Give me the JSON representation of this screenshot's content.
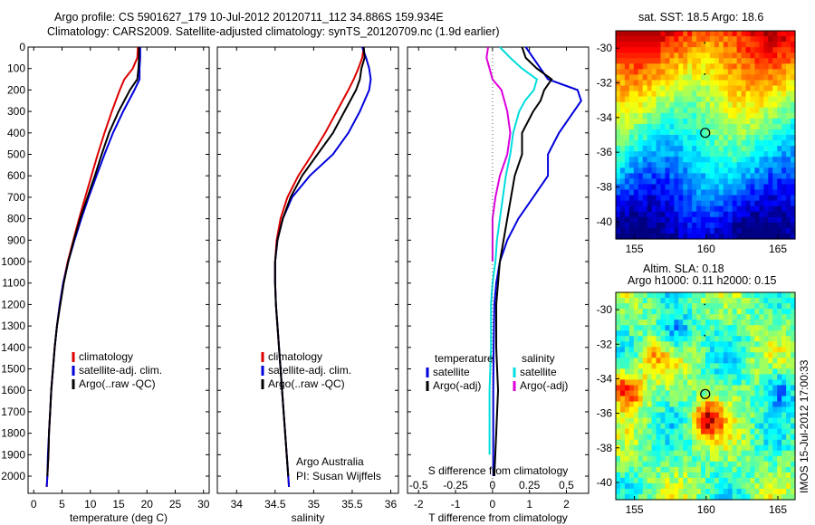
{
  "header": {
    "line1": "Argo profile: CS 5901627_179 10-Jul-2012 20120711_112 34.886S 159.934E",
    "line2": "Climatology: CARS2009. Satellite-adjusted climatology: synTS_20120709.nc (1.9d earlier)"
  },
  "depth_axis": {
    "ticks": [
      0,
      100,
      200,
      300,
      400,
      500,
      600,
      700,
      800,
      900,
      1000,
      1100,
      1200,
      1300,
      1400,
      1500,
      1600,
      1700,
      1800,
      1900,
      2000
    ],
    "range": [
      0,
      2080
    ]
  },
  "chart_data": [
    {
      "type": "line",
      "name": "temperature",
      "xlabel": "temperature (deg C)",
      "ylabel": "",
      "xlim": [
        -1,
        31
      ],
      "xticks": [
        0,
        5,
        10,
        15,
        20,
        25,
        30
      ],
      "legend": [
        "climatology",
        "satellite-adj. clim.",
        "Argo(..raw -QC)"
      ],
      "legend_placement": "bottom-center",
      "series": [
        {
          "name": "climatology",
          "color": "#dd0000",
          "depth": [
            0,
            50,
            100,
            150,
            200,
            300,
            400,
            500,
            600,
            700,
            800,
            900,
            1000,
            1100,
            1200,
            1300,
            1400,
            1500,
            1600,
            1700,
            1800,
            1900,
            2000,
            2050
          ],
          "values": [
            18.4,
            18.3,
            17.5,
            16.0,
            15.2,
            13.8,
            12.5,
            11.3,
            10.2,
            9.1,
            8.0,
            7.0,
            6.0,
            5.2,
            4.6,
            4.1,
            3.7,
            3.4,
            3.1,
            2.9,
            2.7,
            2.6,
            2.4,
            2.3
          ]
        },
        {
          "name": "satellite-adj. clim.",
          "color": "#0000dd",
          "depth": [
            0,
            50,
            100,
            150,
            200,
            300,
            400,
            500,
            600,
            700,
            800,
            900,
            1000,
            1100,
            1200,
            1300,
            1400,
            1500,
            1600,
            1700,
            1800,
            1900,
            2000,
            2050
          ],
          "values": [
            18.8,
            18.8,
            18.7,
            18.7,
            17.8,
            15.8,
            14.0,
            12.5,
            11.1,
            9.7,
            8.4,
            7.2,
            6.1,
            5.2,
            4.6,
            4.1,
            3.7,
            3.4,
            3.1,
            2.9,
            2.7,
            2.5,
            2.4,
            2.3
          ]
        },
        {
          "name": "Argo(..raw -QC)",
          "color": "#000000",
          "depth": [
            0,
            50,
            100,
            150,
            200,
            300,
            400,
            500,
            600,
            700,
            800,
            900,
            1000,
            1100,
            1200,
            1300,
            1400,
            1500,
            1600,
            1700,
            1800,
            1900,
            2000
          ],
          "values": [
            18.6,
            18.6,
            18.5,
            18.3,
            17.0,
            15.0,
            13.3,
            12.0,
            10.8,
            9.5,
            8.2,
            7.1,
            6.1,
            5.3,
            4.7,
            4.1,
            3.7,
            3.4,
            3.1,
            2.9,
            2.7,
            2.6,
            2.4
          ]
        }
      ]
    },
    {
      "type": "line",
      "name": "salinity",
      "xlabel": "salinity",
      "ylabel": "",
      "xlim": [
        33.75,
        36.1
      ],
      "xticks": [
        34,
        34.5,
        35,
        35.5,
        36
      ],
      "legend": [
        "climatology",
        "satellite-adj. clim.",
        "Argo(..raw -QC)"
      ],
      "legend_placement": "bottom-center",
      "annotation": [
        "Argo Australia",
        "PI: Susan Wijffels"
      ],
      "series": [
        {
          "name": "climatology",
          "color": "#dd0000",
          "depth": [
            0,
            50,
            100,
            150,
            200,
            300,
            400,
            500,
            600,
            700,
            800,
            900,
            1000,
            1100,
            1200,
            1300,
            1400,
            1500,
            1600,
            1700,
            1800,
            1900,
            2000,
            2050
          ],
          "values": [
            35.65,
            35.63,
            35.58,
            35.52,
            35.45,
            35.3,
            35.15,
            34.98,
            34.8,
            34.66,
            34.57,
            34.52,
            34.5,
            34.5,
            34.51,
            34.53,
            34.55,
            34.57,
            34.59,
            34.61,
            34.63,
            34.65,
            34.67,
            34.68
          ]
        },
        {
          "name": "satellite-adj. clim.",
          "color": "#0000dd",
          "depth": [
            0,
            50,
            100,
            150,
            200,
            300,
            400,
            500,
            600,
            700,
            800,
            900,
            1000,
            1100,
            1200,
            1300,
            1400,
            1500,
            1600,
            1700,
            1800,
            1900,
            2000,
            2050
          ],
          "values": [
            35.63,
            35.68,
            35.72,
            35.74,
            35.72,
            35.6,
            35.45,
            35.25,
            34.95,
            34.72,
            34.6,
            34.53,
            34.5,
            34.5,
            34.51,
            34.53,
            34.55,
            34.57,
            34.59,
            34.61,
            34.63,
            34.65,
            34.67,
            34.68
          ]
        },
        {
          "name": "Argo(..raw -QC)",
          "color": "#000000",
          "depth": [
            0,
            50,
            100,
            150,
            200,
            300,
            400,
            500,
            600,
            700,
            800,
            900,
            1000,
            1100,
            1200,
            1300,
            1400,
            1500,
            1600,
            1700,
            1800,
            1900,
            2000
          ],
          "values": [
            35.65,
            35.66,
            35.62,
            35.6,
            35.55,
            35.4,
            35.25,
            35.05,
            34.85,
            34.7,
            34.6,
            34.53,
            34.5,
            34.5,
            34.51,
            34.53,
            34.55,
            34.57,
            34.59,
            34.61,
            34.63,
            34.65,
            34.67
          ]
        }
      ]
    },
    {
      "type": "line",
      "name": "differences",
      "xlabel": "T difference from climatology",
      "xlabel_top": "S difference from climatology",
      "xlim": [
        -2.3,
        2.6
      ],
      "xticks": [
        -2,
        -1,
        0,
        1,
        2
      ],
      "s_ticks": [
        -0.5,
        -0.25,
        0,
        0.25,
        0.5
      ],
      "s_ticklabels": [
        "-0.5",
        "-0.25",
        "0",
        "0.25",
        "0.5"
      ],
      "legend_temperature": {
        "title": "temperature",
        "items": [
          "satellite",
          "Argo(-adj)"
        ]
      },
      "legend_salinity": {
        "title": "salinity",
        "items": [
          "satellite",
          "Argo(-adj)"
        ]
      },
      "series": [
        {
          "name": "T satellite",
          "color": "#0000dd",
          "depth": [
            0,
            50,
            100,
            150,
            200,
            250,
            300,
            400,
            500,
            600,
            700,
            800,
            900,
            1000,
            1100,
            1200,
            1400,
            1600,
            1800,
            2000
          ],
          "values": [
            0.9,
            1.1,
            1.3,
            1.5,
            2.3,
            2.4,
            2.2,
            1.8,
            1.5,
            1.5,
            1.1,
            0.7,
            0.4,
            0.2,
            0.1,
            0.05,
            0.03,
            0.02,
            0.02,
            0.02
          ]
        },
        {
          "name": "T Argo(-adj)",
          "color": "#000000",
          "depth": [
            0,
            50,
            100,
            150,
            200,
            250,
            300,
            400,
            500,
            600,
            700,
            800,
            900,
            1000,
            1100,
            1200,
            1400,
            1600,
            1800,
            2000
          ],
          "values": [
            0.8,
            0.9,
            1.2,
            1.6,
            1.4,
            1.3,
            1.1,
            0.8,
            0.8,
            0.6,
            0.5,
            0.4,
            0.3,
            0.2,
            0.15,
            0.1,
            0.1,
            0.15,
            0.1,
            0.05
          ]
        },
        {
          "name": "S satellite",
          "color": "#00dddd",
          "depth": [
            0,
            50,
            100,
            150,
            200,
            250,
            300,
            400,
            500,
            600,
            700,
            800,
            900,
            1000,
            1100,
            1200,
            1400,
            1600,
            1800,
            1900
          ],
          "values": [
            0.05,
            0.12,
            0.2,
            0.3,
            0.28,
            0.22,
            0.18,
            0.14,
            0.12,
            0.09,
            0.07,
            0.05,
            0.03,
            0.02,
            0.0,
            -0.01,
            -0.01,
            -0.02,
            -0.02,
            -0.02
          ]
        },
        {
          "name": "S Argo(-adj)",
          "color": "#dd00dd",
          "depth": [
            0,
            50,
            100,
            150,
            200,
            300,
            400,
            500,
            600,
            700,
            800,
            900,
            1000
          ],
          "values": [
            -0.03,
            -0.04,
            -0.02,
            0.0,
            0.06,
            0.1,
            0.12,
            0.1,
            0.05,
            0.02,
            0.0,
            0.0,
            0.0
          ]
        }
      ]
    },
    {
      "type": "heatmap",
      "name": "sst-map",
      "title": "sat. SST: 18.5 Argo: 18.6",
      "xlim": [
        153.7,
        166.2
      ],
      "ylim": [
        -41,
        -29
      ],
      "xticks": [
        155,
        160,
        165
      ],
      "yticks": [
        -30,
        -32,
        -34,
        -36,
        -38,
        -40
      ],
      "argo_position": [
        159.934,
        -34.886
      ]
    },
    {
      "type": "heatmap",
      "name": "sla-map",
      "title_line1": "Altim. SLA: 0.18",
      "title_line2": "Argo h1000: 0.11 h2000: 0.15",
      "xlim": [
        153.7,
        166.2
      ],
      "ylim": [
        -41,
        -29
      ],
      "xticks": [
        155,
        160,
        165
      ],
      "yticks": [
        -30,
        -32,
        -34,
        -36,
        -38,
        -40
      ],
      "argo_position": [
        159.934,
        -34.886
      ]
    }
  ],
  "footer_stamp": "IMOS 15-Jul-2012 17:00:33"
}
